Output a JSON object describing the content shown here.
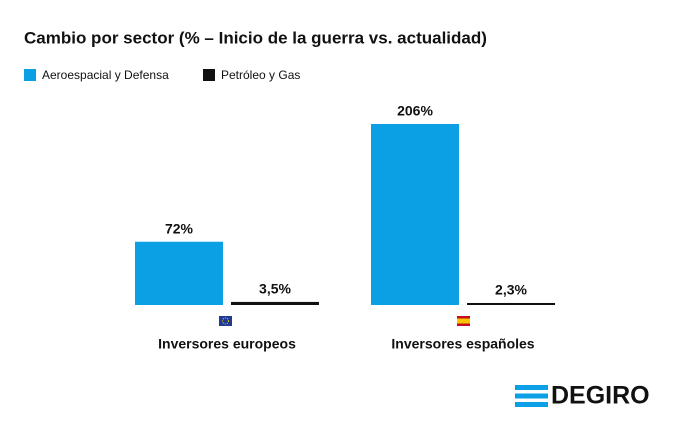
{
  "chart_data": {
    "type": "bar",
    "title": "Cambio por sector (% – Inicio de la guerra vs. actualidad)",
    "categories": [
      "Inversores europeos",
      "Inversores españoles"
    ],
    "series": [
      {
        "name": "Aeroespacial y Defensa",
        "color": "#0ba0e3",
        "values": [
          72,
          206
        ],
        "value_labels": [
          "72%",
          "206%"
        ]
      },
      {
        "name": "Petróleo y Gas",
        "color": "#111111",
        "values": [
          3.5,
          2.3
        ],
        "value_labels": [
          "3,5%",
          "2,3%"
        ]
      }
    ],
    "legend": "top-left"
  },
  "logo": "DEGIRO"
}
